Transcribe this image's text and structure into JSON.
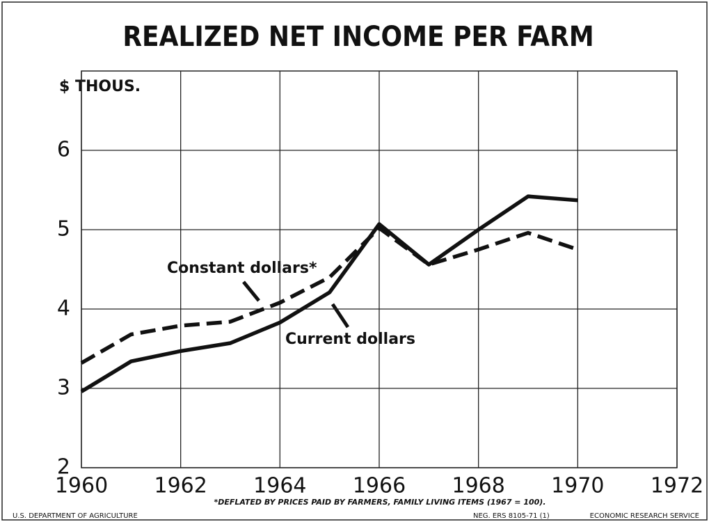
{
  "chart_data": {
    "type": "line",
    "title": "REALIZED NET INCOME PER FARM",
    "y_label": "$ THOUS.",
    "x": [
      1960,
      1961,
      1962,
      1963,
      1964,
      1965,
      1966,
      1967,
      1968,
      1969,
      1970
    ],
    "series": [
      {
        "name": "Constant dollars*",
        "color": "#111111",
        "style": "dashed",
        "values": [
          3.32,
          3.68,
          3.79,
          3.84,
          4.08,
          4.4,
          5.02,
          4.56,
          4.75,
          4.96,
          4.75
        ]
      },
      {
        "name": "Current dollars",
        "color": "#111111",
        "style": "solid",
        "values": [
          2.96,
          3.34,
          3.47,
          3.57,
          3.83,
          4.21,
          5.07,
          4.56,
          5.0,
          5.42,
          5.37
        ]
      }
    ],
    "xlim": [
      1960,
      1972
    ],
    "xticks": [
      1960,
      1962,
      1964,
      1966,
      1968,
      1970,
      1972
    ],
    "ylim": [
      2,
      7
    ],
    "yticks": [
      2,
      3,
      4,
      5,
      6
    ],
    "grid": true,
    "note": "*DEFLATED BY PRICES PAID BY FARMERS, FAMILY LIVING ITEMS (1967 = 100).",
    "footer_left": "U.S. DEPARTMENT OF AGRICULTURE",
    "footer_middle": "NEG. ERS 8105-71 (1)",
    "footer_right": "ECONOMIC RESEARCH SERVICE"
  }
}
